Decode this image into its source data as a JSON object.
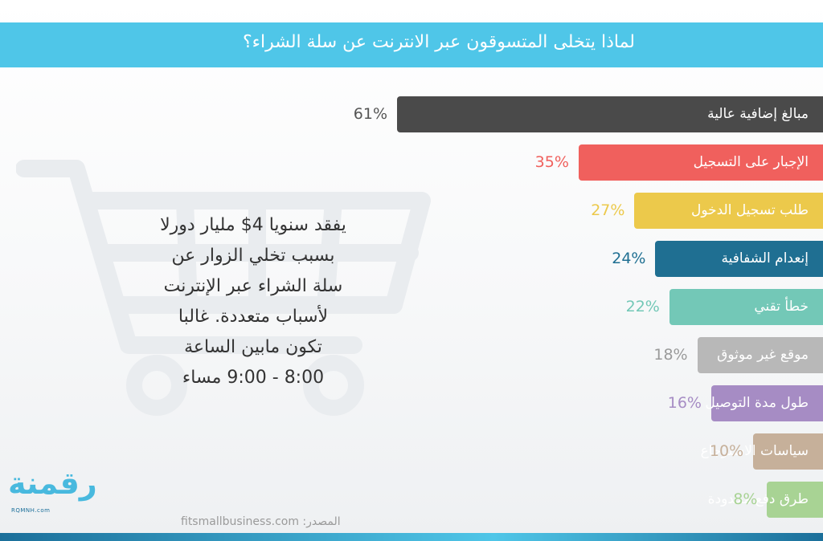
{
  "header": {
    "title": "لماذا يتخلى المتسوقون عبر الانترنت عن سلة الشراء؟"
  },
  "chart_data": {
    "type": "bar",
    "orientation": "horizontal",
    "title": "لماذا يتخلى المتسوقون عبر الانترنت عن سلة الشراء؟",
    "categories": [
      "مبالغ إضافية عالية",
      "الإجبار على التسجيل",
      "طلب تسجيل الدخول",
      "إنعدام الشفافية",
      "خطأ تقني",
      "موقع غير موثوق",
      "طول مدة التوصيل",
      "سياسات الاسترجاع",
      "طرق دفع محدودة"
    ],
    "values": [
      61,
      35,
      27,
      24,
      22,
      18,
      16,
      10,
      8
    ],
    "value_labels": [
      "61%",
      "35%",
      "27%",
      "24%",
      "22%",
      "18%",
      "16%",
      "10%",
      "8%"
    ],
    "colors": [
      "#4a4a4a",
      "#f0605d",
      "#ecc94b",
      "#1f6f92",
      "#73c8b7",
      "#b8b8b8",
      "#a68cc4",
      "#c6b09a",
      "#a8d394"
    ],
    "unit": "%",
    "xlim": [
      0,
      100
    ]
  },
  "info": {
    "lines": [
      "يفقد سنويا 4$ مليار دورلا",
      "بسبب تخلي الزوار عن",
      "سلة الشراء عبر الإنترنت",
      "لأسباب متعددة. غالبا",
      "تكون مابين الساعة",
      "8:00 - 9:00 مساء"
    ]
  },
  "source": {
    "text": "المصدر: fitsmallbusiness.com"
  },
  "logo": {
    "text": "رقمنة",
    "sub": "RQMNH.com"
  },
  "icons": {
    "background": "shopping-cart-icon"
  }
}
